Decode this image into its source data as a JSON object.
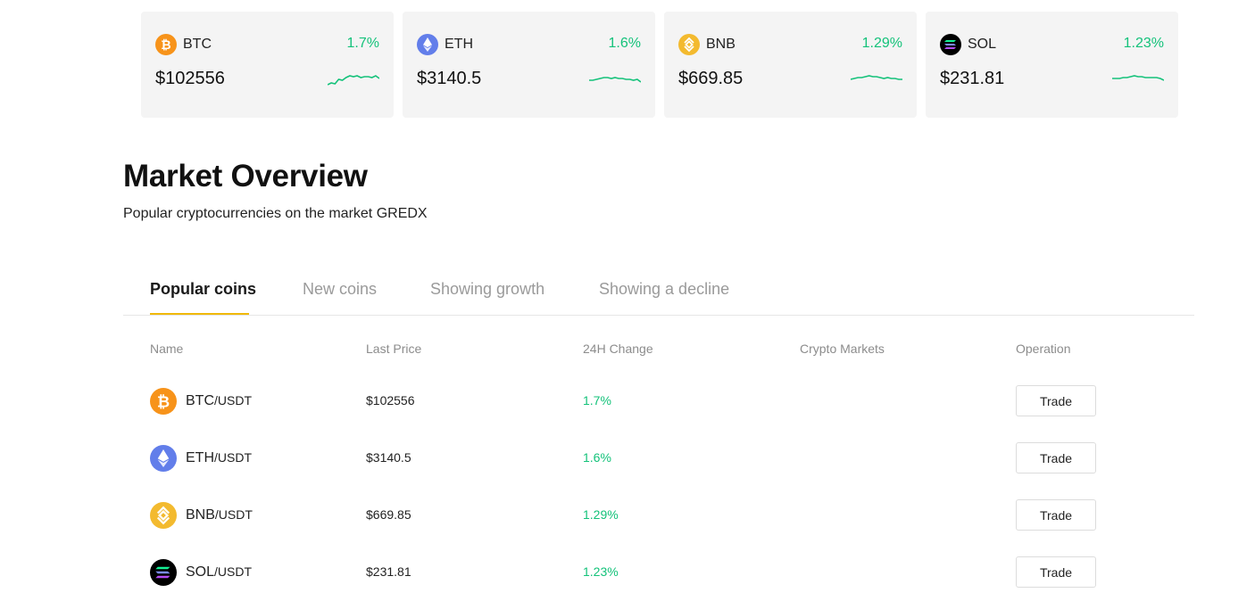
{
  "tickers": [
    {
      "symbol": "BTC",
      "change": "1.7%",
      "price": "$102556",
      "icon": "btc-icon",
      "spark": [
        14,
        12,
        13,
        8,
        9,
        6,
        4,
        5,
        4,
        6,
        5,
        5,
        6,
        4,
        7
      ]
    },
    {
      "symbol": "ETH",
      "change": "1.6%",
      "price": "$3140.5",
      "icon": "eth-icon",
      "spark": [
        9,
        9,
        8,
        7,
        6,
        6,
        7,
        6,
        7,
        7,
        8,
        8,
        9,
        8,
        11
      ]
    },
    {
      "symbol": "BNB",
      "change": "1.29%",
      "price": "$669.85",
      "icon": "bnb-icon",
      "spark": [
        8,
        7,
        6,
        6,
        5,
        4,
        5,
        5,
        6,
        7,
        6,
        7,
        7,
        8,
        8
      ]
    },
    {
      "symbol": "SOL",
      "change": "1.23%",
      "price": "$231.81",
      "icon": "sol-icon",
      "spark": [
        7,
        7,
        7,
        6,
        6,
        5,
        4,
        5,
        5,
        6,
        6,
        6,
        6,
        7,
        9
      ]
    }
  ],
  "overview": {
    "title": "Market Overview",
    "subtitle": "Popular cryptocurrencies on the market GREDX"
  },
  "tabs": [
    "Popular coins",
    "New coins",
    "Showing growth",
    "Showing a decline"
  ],
  "active_tab": "Popular coins",
  "columns": {
    "name": "Name",
    "last_price": "Last Price",
    "change": "24H Change",
    "markets": "Crypto Markets",
    "operation": "Operation"
  },
  "rows": [
    {
      "base": "BTC",
      "quote": "/USDT",
      "price": "$102556",
      "change": "1.7%",
      "action": "Trade",
      "icon": "btc-icon"
    },
    {
      "base": "ETH",
      "quote": "/USDT",
      "price": "$3140.5",
      "change": "1.6%",
      "action": "Trade",
      "icon": "eth-icon"
    },
    {
      "base": "BNB",
      "quote": "/USDT",
      "price": "$669.85",
      "change": "1.29%",
      "action": "Trade",
      "icon": "bnb-icon"
    },
    {
      "base": "SOL",
      "quote": "/USDT",
      "price": "$231.81",
      "change": "1.23%",
      "action": "Trade",
      "icon": "sol-icon"
    }
  ],
  "colors": {
    "positive": "#14c27a",
    "tab_accent": "#f0b90b",
    "card_bg": "#f4f4f4"
  }
}
